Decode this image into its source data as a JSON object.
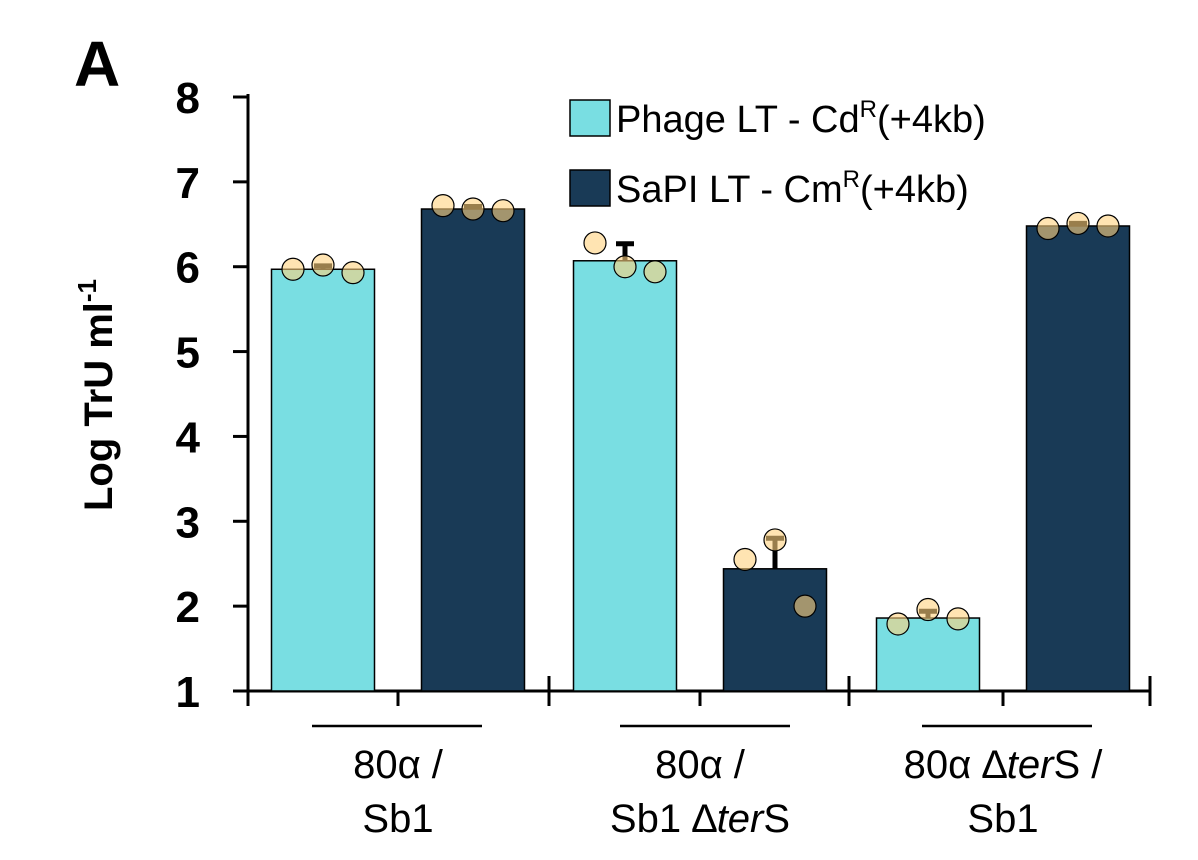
{
  "panel_letter": "A",
  "chart_data": {
    "type": "bar",
    "ylabel": "Log TrU ml",
    "ylabel_superscript": "-1",
    "ylim": [
      1,
      8
    ],
    "yticks": [
      "1",
      "2",
      "3",
      "4",
      "5",
      "6",
      "7",
      "8"
    ],
    "grid": false,
    "legend_position": "top-right",
    "categories": [
      {
        "line1": "80α /",
        "line2": "Sb1"
      },
      {
        "line1": "80α /",
        "line2_prefix": "Sb1 ∆",
        "line2_italic": "ter",
        "line2_suffix": "S"
      },
      {
        "line1_prefix": "80α ∆",
        "line1_italic": "ter",
        "line1_suffix": "S /",
        "line2": "Sb1"
      }
    ],
    "series": [
      {
        "legend_text": "Phage LT - Cd",
        "legend_superscript": "R",
        "legend_suffix": "(+4kb)",
        "color": "#79DEE2",
        "values": [
          5.97,
          6.07,
          1.86
        ],
        "error": [
          0.04,
          0.2,
          0.08
        ],
        "points": [
          [
            5.97,
            6.02,
            5.93
          ],
          [
            6.28,
            6.0,
            5.94
          ],
          [
            1.79,
            1.96,
            1.85
          ]
        ]
      },
      {
        "legend_text": "SaPI LT - Cm",
        "legend_superscript": "R",
        "legend_suffix": "(+4kb)",
        "color": "#193A56",
        "values": [
          6.68,
          2.44,
          6.48
        ],
        "error": [
          0.03,
          0.36,
          0.03
        ],
        "points": [
          [
            6.72,
            6.68,
            6.66
          ],
          [
            2.55,
            2.78,
            2.0
          ],
          [
            6.45,
            6.51,
            6.48
          ]
        ]
      }
    ],
    "point_color": "#FFD27F"
  }
}
